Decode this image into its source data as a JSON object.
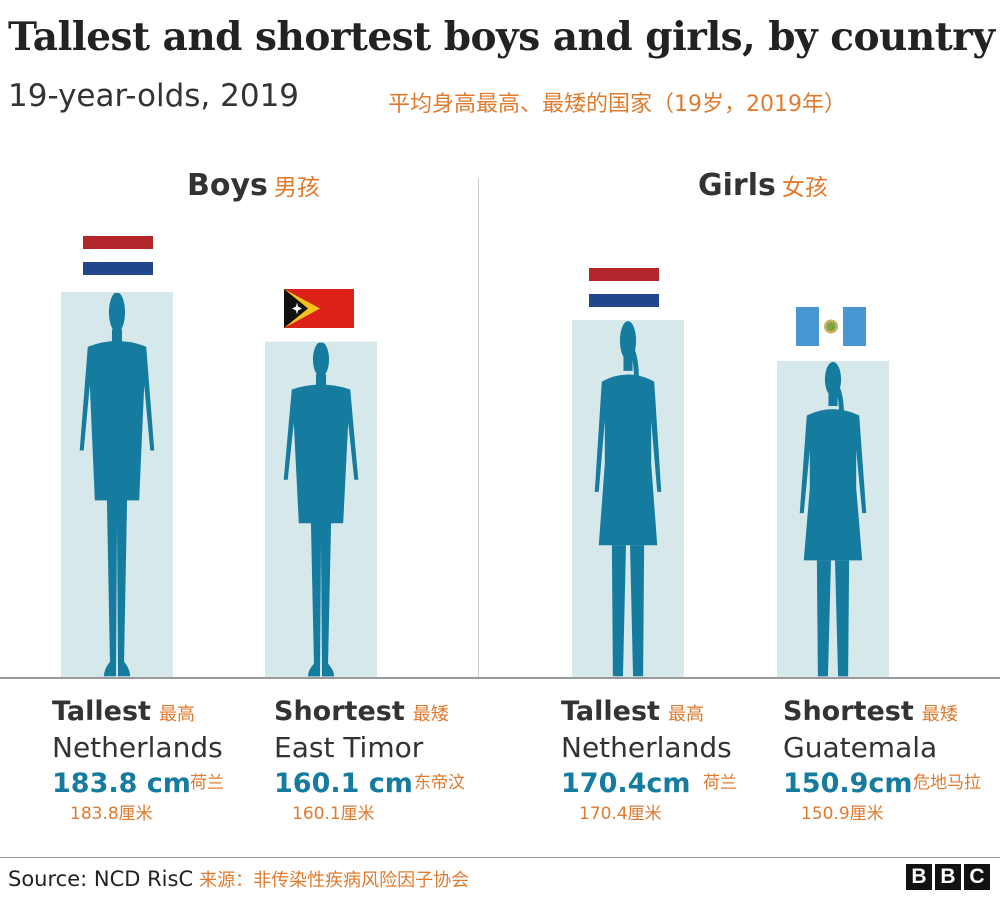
{
  "header": {
    "title": "Tallest and shortest boys and girls, by country",
    "subtitle": "19-year-olds, 2019",
    "subtitle_zh": "平均身高最高、最矮的国家（19岁，2019年）"
  },
  "groups": {
    "boys": {
      "label": "Boys",
      "label_zh": "男孩"
    },
    "girls": {
      "label": "Girls",
      "label_zh": "女孩"
    }
  },
  "cards": [
    {
      "label": "Tallest",
      "label_zh": "最高",
      "country": "Netherlands",
      "country_zh": "荷兰",
      "value": "183.8 cm",
      "value_zh": "183.8厘米"
    },
    {
      "label": "Shortest",
      "label_zh": "最矮",
      "country": "East Timor",
      "country_zh": "东帝汶",
      "value": "160.1 cm",
      "value_zh": "160.1厘米"
    },
    {
      "label": "Tallest",
      "label_zh": "最高",
      "country": "Netherlands",
      "country_zh": "荷兰",
      "value": "170.4cm",
      "value_zh": "170.4厘米"
    },
    {
      "label": "Shortest",
      "label_zh": "最矮",
      "country": "Guatemala",
      "country_zh": "危地马拉",
      "value": "150.9cm",
      "value_zh": "150.9厘米"
    }
  ],
  "chart_data": {
    "type": "bar",
    "title": "Tallest and shortest boys and girls, by country",
    "subtitle": "19-year-olds, 2019",
    "unit": "cm",
    "categories": [
      "Boys Tallest (Netherlands)",
      "Boys Shortest (East Timor)",
      "Girls Tallest (Netherlands)",
      "Girls Shortest (Guatemala)"
    ],
    "values": [
      183.8,
      160.1,
      170.4,
      150.9
    ],
    "colors": {
      "silhouette": "#157ca0",
      "box": "#d6e8ea",
      "accent_zh": "#e07a2e"
    }
  },
  "footer": {
    "source": "Source: NCD RisC",
    "source_zh": "来源：非传染性疾病风险因子协会",
    "brand": [
      "B",
      "B",
      "C"
    ]
  }
}
